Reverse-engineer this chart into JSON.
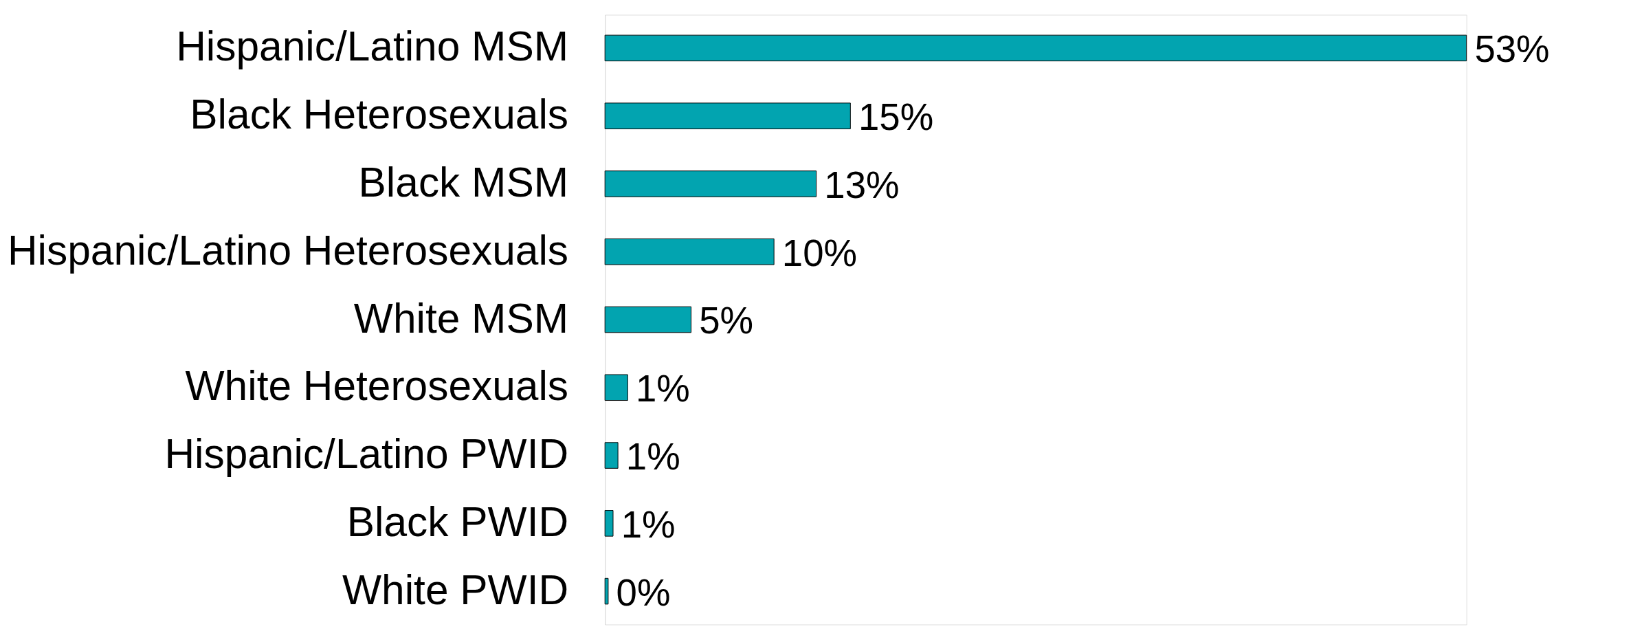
{
  "chart_data": {
    "type": "bar",
    "orientation": "horizontal",
    "categories": [
      "Hispanic/Latino MSM",
      "Black Heterosexuals",
      "Black MSM",
      "Hispanic/Latino Heterosexuals",
      "White MSM",
      "White Heterosexuals",
      "Hispanic/Latino PWID",
      "Black PWID",
      "White PWID"
    ],
    "values": [
      53,
      15.1,
      13,
      10.4,
      5.3,
      1.4,
      0.8,
      0.5,
      0.2
    ],
    "color": "#02a4b0",
    "value_labels": [
      "53%",
      "15%",
      "13%",
      "10%",
      "5%",
      "1%",
      "1%",
      "1%",
      "0%"
    ]
  }
}
